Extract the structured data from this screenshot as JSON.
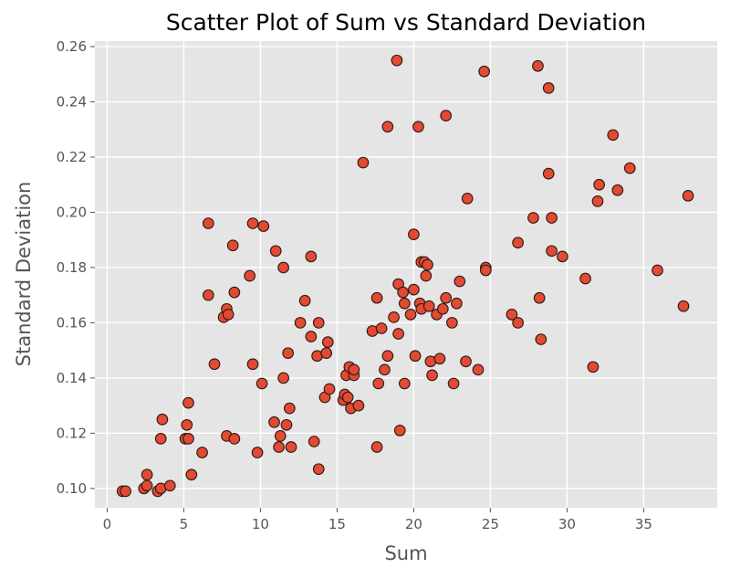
{
  "chart_data": {
    "type": "scatter",
    "title": "Scatter Plot of Sum vs Standard Deviation",
    "xlabel": "Sum",
    "ylabel": "Standard Deviation",
    "xlim": [
      -0.8,
      39.8
    ],
    "ylim": [
      0.093,
      0.262
    ],
    "xticks": [
      0,
      5,
      10,
      15,
      20,
      25,
      30,
      35
    ],
    "yticks": [
      0.1,
      0.12,
      0.14,
      0.16,
      0.18,
      0.2,
      0.22,
      0.24,
      0.26
    ],
    "xtick_labels": [
      "0",
      "5",
      "10",
      "15",
      "20",
      "25",
      "30",
      "35"
    ],
    "ytick_labels": [
      "0.10",
      "0.12",
      "0.14",
      "0.16",
      "0.18",
      "0.20",
      "0.22",
      "0.24",
      "0.26"
    ],
    "grid": true,
    "colors": {
      "background": "#e5e5e5",
      "grid": "#ffffff",
      "marker_fill": "#e24a33",
      "marker_edge": "#2b1a14"
    },
    "points": [
      [
        1.0,
        0.099
      ],
      [
        1.2,
        0.099
      ],
      [
        2.4,
        0.1
      ],
      [
        2.6,
        0.101
      ],
      [
        2.6,
        0.105
      ],
      [
        3.3,
        0.099
      ],
      [
        3.5,
        0.1
      ],
      [
        4.1,
        0.101
      ],
      [
        3.5,
        0.118
      ],
      [
        3.6,
        0.125
      ],
      [
        5.1,
        0.118
      ],
      [
        5.3,
        0.118
      ],
      [
        5.2,
        0.123
      ],
      [
        5.3,
        0.131
      ],
      [
        5.5,
        0.105
      ],
      [
        6.2,
        0.113
      ],
      [
        6.6,
        0.196
      ],
      [
        6.6,
        0.17
      ],
      [
        7.0,
        0.145
      ],
      [
        7.6,
        0.162
      ],
      [
        7.8,
        0.165
      ],
      [
        7.9,
        0.163
      ],
      [
        7.8,
        0.119
      ],
      [
        8.3,
        0.118
      ],
      [
        8.2,
        0.188
      ],
      [
        8.3,
        0.171
      ],
      [
        9.3,
        0.177
      ],
      [
        9.5,
        0.196
      ],
      [
        9.5,
        0.145
      ],
      [
        9.8,
        0.113
      ],
      [
        10.1,
        0.138
      ],
      [
        10.2,
        0.195
      ],
      [
        10.9,
        0.124
      ],
      [
        11.0,
        0.186
      ],
      [
        11.2,
        0.115
      ],
      [
        11.3,
        0.119
      ],
      [
        11.5,
        0.18
      ],
      [
        11.5,
        0.14
      ],
      [
        11.7,
        0.123
      ],
      [
        11.8,
        0.149
      ],
      [
        11.9,
        0.129
      ],
      [
        12.0,
        0.115
      ],
      [
        12.6,
        0.16
      ],
      [
        12.9,
        0.168
      ],
      [
        13.3,
        0.184
      ],
      [
        13.3,
        0.155
      ],
      [
        13.5,
        0.117
      ],
      [
        13.7,
        0.148
      ],
      [
        13.8,
        0.16
      ],
      [
        13.8,
        0.107
      ],
      [
        14.2,
        0.133
      ],
      [
        14.3,
        0.149
      ],
      [
        14.4,
        0.153
      ],
      [
        14.5,
        0.136
      ],
      [
        15.4,
        0.132
      ],
      [
        15.5,
        0.134
      ],
      [
        15.6,
        0.141
      ],
      [
        15.7,
        0.133
      ],
      [
        15.8,
        0.144
      ],
      [
        15.9,
        0.129
      ],
      [
        16.1,
        0.141
      ],
      [
        16.1,
        0.143
      ],
      [
        16.4,
        0.13
      ],
      [
        16.7,
        0.218
      ],
      [
        17.3,
        0.157
      ],
      [
        17.6,
        0.169
      ],
      [
        17.6,
        0.115
      ],
      [
        17.7,
        0.138
      ],
      [
        17.9,
        0.158
      ],
      [
        18.1,
        0.143
      ],
      [
        18.3,
        0.148
      ],
      [
        18.3,
        0.231
      ],
      [
        18.7,
        0.162
      ],
      [
        18.9,
        0.255
      ],
      [
        19.0,
        0.174
      ],
      [
        19.0,
        0.156
      ],
      [
        19.1,
        0.121
      ],
      [
        19.3,
        0.171
      ],
      [
        19.4,
        0.167
      ],
      [
        19.4,
        0.138
      ],
      [
        19.8,
        0.163
      ],
      [
        20.0,
        0.172
      ],
      [
        20.0,
        0.192
      ],
      [
        20.1,
        0.148
      ],
      [
        20.3,
        0.231
      ],
      [
        20.4,
        0.167
      ],
      [
        20.5,
        0.182
      ],
      [
        20.5,
        0.165
      ],
      [
        20.7,
        0.182
      ],
      [
        20.8,
        0.177
      ],
      [
        20.9,
        0.181
      ],
      [
        21.0,
        0.166
      ],
      [
        21.1,
        0.146
      ],
      [
        21.2,
        0.141
      ],
      [
        21.5,
        0.163
      ],
      [
        21.7,
        0.147
      ],
      [
        21.9,
        0.165
      ],
      [
        22.1,
        0.235
      ],
      [
        22.1,
        0.169
      ],
      [
        22.5,
        0.16
      ],
      [
        22.6,
        0.138
      ],
      [
        22.8,
        0.167
      ],
      [
        23.0,
        0.175
      ],
      [
        23.4,
        0.146
      ],
      [
        23.5,
        0.205
      ],
      [
        24.2,
        0.143
      ],
      [
        24.6,
        0.251
      ],
      [
        24.7,
        0.18
      ],
      [
        24.7,
        0.179
      ],
      [
        26.4,
        0.163
      ],
      [
        26.8,
        0.189
      ],
      [
        26.8,
        0.16
      ],
      [
        27.8,
        0.198
      ],
      [
        28.1,
        0.253
      ],
      [
        28.2,
        0.169
      ],
      [
        28.3,
        0.154
      ],
      [
        28.8,
        0.245
      ],
      [
        28.8,
        0.214
      ],
      [
        29.0,
        0.198
      ],
      [
        29.0,
        0.186
      ],
      [
        29.7,
        0.184
      ],
      [
        31.2,
        0.176
      ],
      [
        31.7,
        0.144
      ],
      [
        32.0,
        0.204
      ],
      [
        32.1,
        0.21
      ],
      [
        33.0,
        0.228
      ],
      [
        33.3,
        0.208
      ],
      [
        34.1,
        0.216
      ],
      [
        35.9,
        0.179
      ],
      [
        37.6,
        0.166
      ],
      [
        37.9,
        0.206
      ]
    ]
  }
}
